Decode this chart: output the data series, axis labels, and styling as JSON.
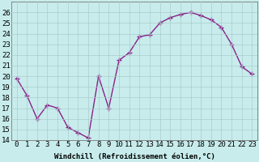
{
  "x": [
    0,
    1,
    2,
    3,
    4,
    5,
    6,
    7,
    8,
    9,
    10,
    11,
    12,
    13,
    14,
    15,
    16,
    17,
    18,
    19,
    20,
    21,
    22,
    23
  ],
  "y": [
    19.8,
    18.2,
    16.0,
    17.3,
    17.0,
    15.2,
    14.7,
    14.2,
    20.0,
    17.0,
    21.5,
    22.2,
    23.7,
    23.9,
    25.0,
    25.5,
    25.8,
    26.0,
    25.7,
    25.3,
    24.6,
    23.0,
    20.9,
    20.2
  ],
  "line_color": "#882288",
  "marker": "+",
  "bg_color": "#c8ecec",
  "grid_color": "#aacccc",
  "xlabel": "Windchill (Refroidissement éolien,°C)",
  "ylim": [
    14,
    27
  ],
  "xlim": [
    -0.5,
    23.5
  ],
  "yticks": [
    14,
    15,
    16,
    17,
    18,
    19,
    20,
    21,
    22,
    23,
    24,
    25,
    26
  ],
  "xticks": [
    0,
    1,
    2,
    3,
    4,
    5,
    6,
    7,
    8,
    9,
    10,
    11,
    12,
    13,
    14,
    15,
    16,
    17,
    18,
    19,
    20,
    21,
    22,
    23
  ],
  "xlabel_fontsize": 6.5,
  "tick_fontsize": 6.5,
  "line_width": 1.0,
  "marker_size": 4,
  "marker_edge_width": 1.0
}
